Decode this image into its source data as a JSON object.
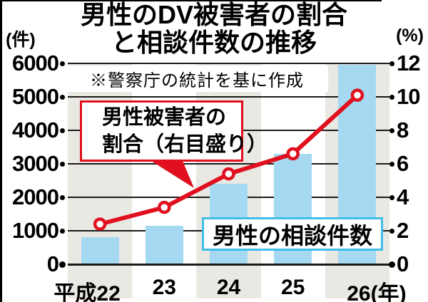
{
  "title": {
    "line1": "男性のDV被害者の割合",
    "line2": "と相談件数の推移"
  },
  "axes": {
    "left_unit": "(件)",
    "right_unit": "(%)"
  },
  "note": {
    "text": "※警察庁の統計を基に作成"
  },
  "callouts": {
    "ratio": {
      "line1": "男性被害者の",
      "line2": "割合（右目盛り）"
    },
    "bars": {
      "label": "男性の相談件数"
    }
  },
  "colors": {
    "line_red": "#e0101e",
    "bar_blue": "#a5d9f2",
    "bar_label_border": "#40bde8",
    "band_gray": "#e9e8e3",
    "grid_black": "#1a1a1a"
  },
  "chart_data": {
    "type": "combo",
    "title": "男性のDV被害者の割合と相談件数の推移",
    "source_note": "※警察庁の統計を基に作成",
    "categories": [
      "平成22",
      "23",
      "24",
      "25",
      "26(年)"
    ],
    "series": [
      {
        "name": "男性の相談件数",
        "type": "bar",
        "axis": "left",
        "values": [
          800,
          1150,
          2400,
          3300,
          5950
        ]
      },
      {
        "name": "男性被害者の割合（右目盛り）",
        "type": "line",
        "axis": "right",
        "values": [
          2.4,
          3.4,
          5.4,
          6.6,
          10.1
        ]
      }
    ],
    "left_axis": {
      "label": "(件)",
      "min": 0,
      "max": 6000,
      "ticks": [
        "6000",
        "5000",
        "4000",
        "3000",
        "2000",
        "1000",
        "0"
      ]
    },
    "right_axis": {
      "label": "(%)",
      "min": 0,
      "max": 12,
      "ticks": [
        "12",
        "10",
        "8",
        "6",
        "4",
        "2",
        "0"
      ]
    },
    "grid": true,
    "legend": "in-chart callout boxes"
  }
}
